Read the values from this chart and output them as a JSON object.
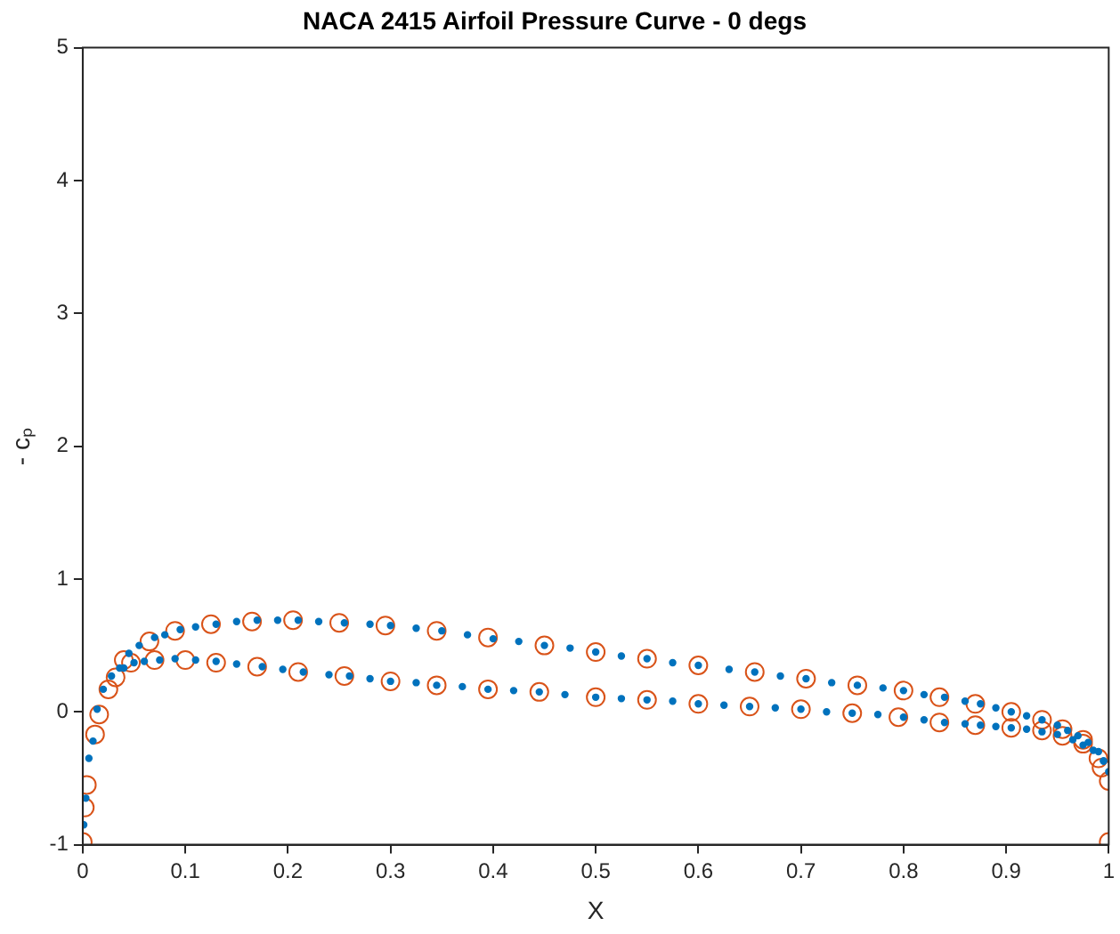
{
  "chart_data": {
    "type": "scatter",
    "title": "NACA 2415 Airfoil Pressure Curve - 0 degs",
    "xlabel": "X",
    "ylabel": "- cₚ",
    "xlim": [
      0,
      1
    ],
    "ylim": [
      -1,
      5
    ],
    "xticks": [
      0,
      0.1,
      0.2,
      0.3,
      0.4,
      0.5,
      0.6,
      0.7,
      0.8,
      0.9,
      1
    ],
    "yticks": [
      -1,
      0,
      1,
      2,
      3,
      4,
      5
    ],
    "grid": false,
    "legend": false,
    "marker": "circle",
    "series": [
      {
        "color": "#0072bd",
        "x": [
          0.001,
          0.003,
          0.006,
          0.01,
          0.014,
          0.02,
          0.028,
          0.036,
          0.045,
          0.055,
          0.07,
          0.08,
          0.095,
          0.11,
          0.13,
          0.15,
          0.17,
          0.19,
          0.21,
          0.23,
          0.255,
          0.28,
          0.3,
          0.325,
          0.35,
          0.375,
          0.4,
          0.425,
          0.45,
          0.475,
          0.5,
          0.525,
          0.55,
          0.575,
          0.6,
          0.63,
          0.655,
          0.68,
          0.705,
          0.73,
          0.755,
          0.78,
          0.8,
          0.82,
          0.84,
          0.86,
          0.875,
          0.89,
          0.905,
          0.92,
          0.935,
          0.95,
          0.96,
          0.97,
          0.98,
          0.99,
          0.995,
          1.0,
          0.04,
          0.05,
          0.06,
          0.075,
          0.09,
          0.11,
          0.13,
          0.15,
          0.175,
          0.195,
          0.215,
          0.24,
          0.26,
          0.28,
          0.3,
          0.325,
          0.345,
          0.37,
          0.395,
          0.42,
          0.445,
          0.47,
          0.5,
          0.525,
          0.55,
          0.575,
          0.6,
          0.625,
          0.65,
          0.675,
          0.7,
          0.725,
          0.75,
          0.775,
          0.8,
          0.82,
          0.84,
          0.86,
          0.875,
          0.89,
          0.905,
          0.92,
          0.935,
          0.95,
          0.965,
          0.975,
          0.985,
          0.995
        ],
        "values": [
          -0.85,
          -0.65,
          -0.35,
          -0.22,
          0.02,
          0.17,
          0.27,
          0.33,
          0.44,
          0.5,
          0.56,
          0.58,
          0.62,
          0.64,
          0.66,
          0.68,
          0.69,
          0.69,
          0.69,
          0.68,
          0.67,
          0.66,
          0.65,
          0.63,
          0.61,
          0.58,
          0.55,
          0.53,
          0.5,
          0.48,
          0.45,
          0.42,
          0.4,
          0.37,
          0.35,
          0.32,
          0.3,
          0.27,
          0.25,
          0.22,
          0.2,
          0.18,
          0.16,
          0.13,
          0.11,
          0.08,
          0.06,
          0.03,
          0,
          -0.03,
          -0.06,
          -0.1,
          -0.14,
          -0.18,
          -0.23,
          -0.3,
          -0.37,
          -0.45,
          0.33,
          0.37,
          0.38,
          0.39,
          0.4,
          0.39,
          0.38,
          0.36,
          0.34,
          0.32,
          0.3,
          0.28,
          0.27,
          0.25,
          0.23,
          0.22,
          0.2,
          0.19,
          0.17,
          0.16,
          0.15,
          0.13,
          0.11,
          0.1,
          0.09,
          0.08,
          0.06,
          0.05,
          0.04,
          0.03,
          0.02,
          0,
          -0.01,
          -0.02,
          -0.04,
          -0.06,
          -0.08,
          -0.09,
          -0.1,
          -0.11,
          -0.12,
          -0.13,
          -0.15,
          -0.17,
          -0.21,
          -0.25,
          -0.29,
          -0.37
        ]
      },
      {
        "color": "#d95319",
        "x": [
          0,
          0.002,
          0.004,
          0.012,
          0.016,
          0.025,
          0.032,
          0.04,
          0.065,
          0.09,
          0.125,
          0.165,
          0.205,
          0.25,
          0.295,
          0.345,
          0.395,
          0.45,
          0.5,
          0.55,
          0.6,
          0.655,
          0.705,
          0.755,
          0.8,
          0.835,
          0.87,
          0.905,
          0.935,
          0.955,
          0.975,
          0.993,
          1.0,
          1.0,
          0.047,
          0.07,
          0.1,
          0.13,
          0.17,
          0.21,
          0.255,
          0.3,
          0.345,
          0.395,
          0.445,
          0.5,
          0.55,
          0.6,
          0.65,
          0.7,
          0.75,
          0.795,
          0.835,
          0.87,
          0.905,
          0.935,
          0.955,
          0.975,
          0.99
        ],
        "values": [
          -0.98,
          -0.72,
          -0.55,
          -0.17,
          -0.02,
          0.17,
          0.26,
          0.39,
          0.53,
          0.61,
          0.66,
          0.68,
          0.69,
          0.67,
          0.65,
          0.61,
          0.56,
          0.5,
          0.45,
          0.4,
          0.35,
          0.3,
          0.25,
          0.2,
          0.16,
          0.11,
          0.06,
          0,
          -0.06,
          -0.13,
          -0.21,
          -0.42,
          -0.52,
          -0.98,
          0.37,
          0.39,
          0.39,
          0.37,
          0.34,
          0.3,
          0.27,
          0.23,
          0.2,
          0.17,
          0.15,
          0.11,
          0.09,
          0.06,
          0.04,
          0.02,
          -0.01,
          -0.04,
          -0.08,
          -0.1,
          -0.12,
          -0.14,
          -0.18,
          -0.24,
          -0.35
        ]
      }
    ]
  }
}
